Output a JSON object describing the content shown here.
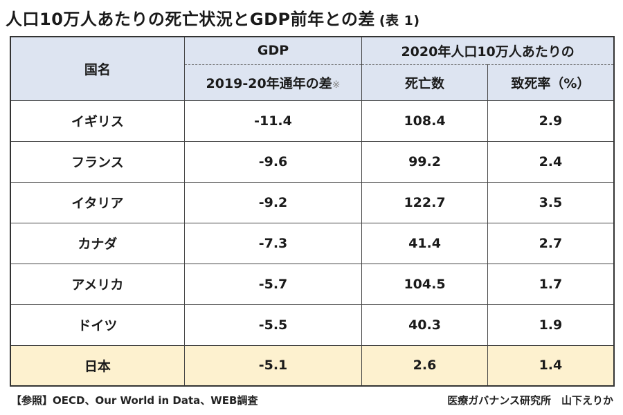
{
  "title": {
    "main": "人口10万人あたりの死亡状況とGDP前年との差",
    "tag": "(表 1)"
  },
  "table": {
    "headers": {
      "country": "国名",
      "gdp_top": "GDP",
      "gdp_sub": "2019-20年通年の差",
      "gdp_note": "※",
      "group_top": "2020年人口10万人あたりの",
      "deaths": "死亡数",
      "fatality": "致死率（%）"
    },
    "rows": [
      {
        "country": "イギリス",
        "gdp": "-11.4",
        "deaths": "108.4",
        "rate": "2.9"
      },
      {
        "country": "フランス",
        "gdp": "-9.6",
        "deaths": "99.2",
        "rate": "2.4"
      },
      {
        "country": "イタリア",
        "gdp": "-9.2",
        "deaths": "122.7",
        "rate": "3.5"
      },
      {
        "country": "カナダ",
        "gdp": "-7.3",
        "deaths": "41.4",
        "rate": "2.7"
      },
      {
        "country": "アメリカ",
        "gdp": "-5.7",
        "deaths": "104.5",
        "rate": "1.7"
      },
      {
        "country": "ドイツ",
        "gdp": "-5.5",
        "deaths": "40.3",
        "rate": "1.9"
      },
      {
        "country": "日本",
        "gdp": "-5.1",
        "deaths": "2.6",
        "rate": "1.4"
      }
    ],
    "highlight_color": "#fdf1cf",
    "header_color": "#dde4f1"
  },
  "footer": {
    "source": "【参照】OECD、Our World in Data、WEB調査",
    "credit": "医療ガバナンス研究所　山下えりか"
  }
}
